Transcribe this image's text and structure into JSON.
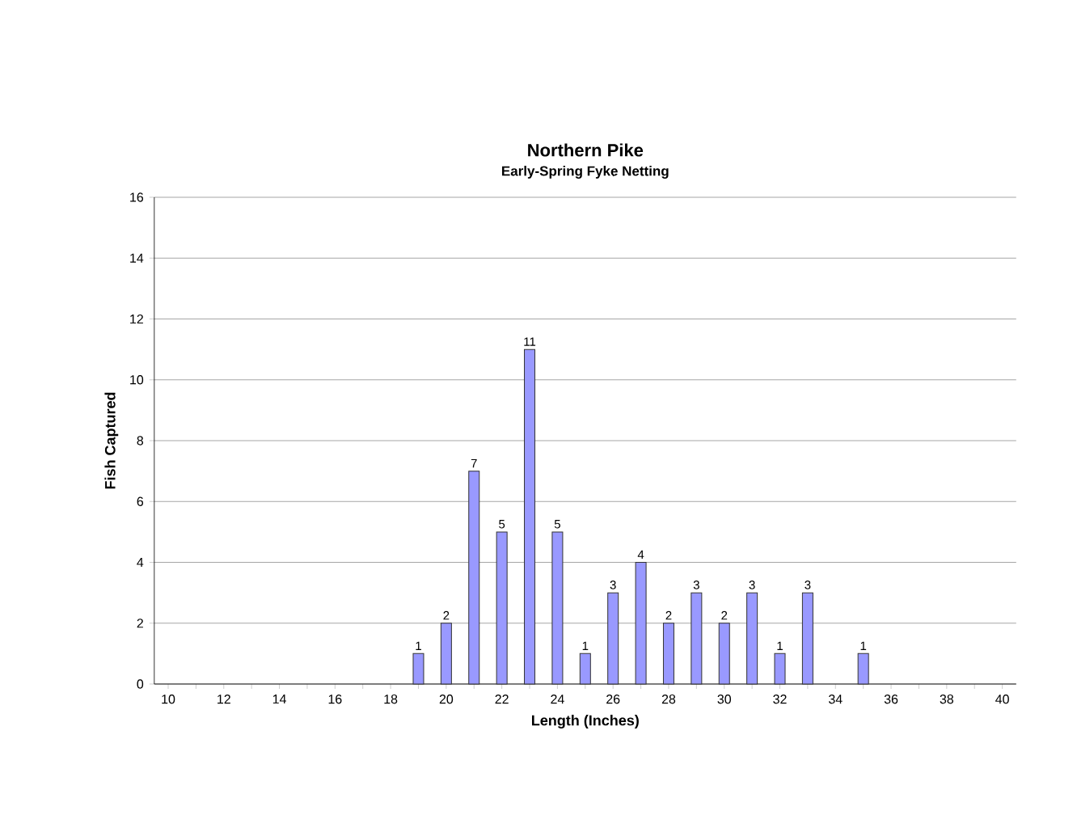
{
  "chart_data": {
    "type": "bar",
    "title": "Northern Pike",
    "subtitle": "Early-Spring Fyke Netting",
    "xlabel": "Length (Inches)",
    "ylabel": "Fish Captured",
    "categories": [
      "10",
      null,
      "12",
      null,
      "14",
      null,
      "16",
      null,
      "18",
      null,
      "20",
      null,
      "22",
      null,
      "24",
      null,
      "26",
      null,
      "28",
      null,
      "30",
      null,
      "32",
      null,
      "34",
      null,
      "36",
      null,
      "38",
      null,
      "40"
    ],
    "values": [
      0,
      0,
      0,
      0,
      0,
      0,
      0,
      0,
      0,
      1,
      2,
      7,
      5,
      11,
      5,
      1,
      3,
      4,
      2,
      3,
      2,
      3,
      1,
      3,
      0,
      1,
      0,
      0,
      0,
      0,
      0
    ],
    "value_labels": [
      null,
      null,
      null,
      null,
      null,
      null,
      null,
      null,
      null,
      "1",
      "2",
      "7",
      "5",
      "11",
      "5",
      "1",
      "3",
      "4",
      "2",
      "3",
      "2",
      "3",
      "1",
      "3",
      null,
      "1",
      null,
      null,
      null,
      null,
      null
    ],
    "color": "#9999ff",
    "ylim": [
      0,
      16
    ],
    "yticks": [
      0,
      2,
      4,
      6,
      8,
      10,
      12,
      14,
      16
    ],
    "grid": "y"
  }
}
